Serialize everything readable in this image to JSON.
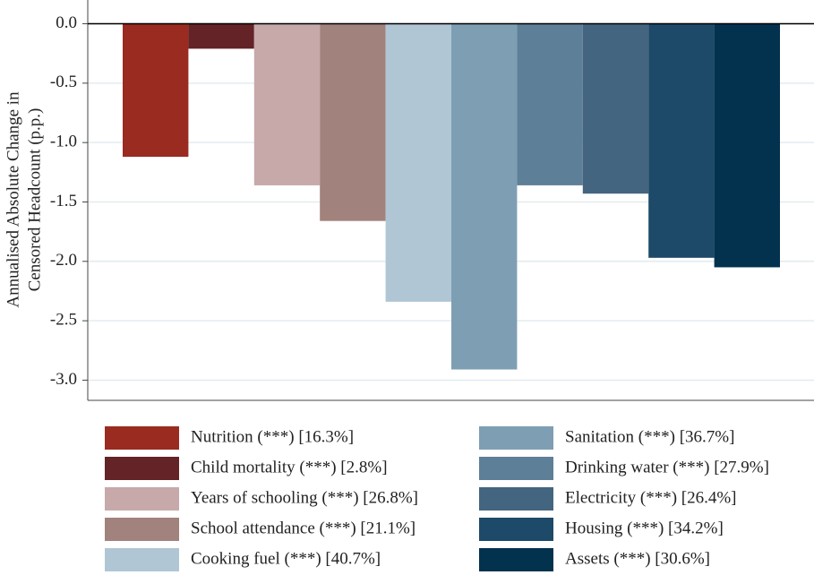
{
  "chart_data": {
    "type": "bar",
    "ylabel": [
      "Annualised Absolute Change in",
      "Censored Headcount (p.p.)"
    ],
    "ylim": [
      -3.17,
      0.2
    ],
    "yticks": [
      {
        "value": 0,
        "label": "0.0"
      },
      -0.5,
      {
        "value": -1,
        "label": "-1.0"
      },
      -1.5,
      {
        "value": -2,
        "label": "-2.0"
      },
      -2.5,
      {
        "value": -3,
        "label": "-3.0"
      }
    ],
    "grid": true,
    "series": [
      {
        "name": "Nutrition (***) [16.3%]",
        "color": "#9a2b21",
        "values": [
          -1.12
        ]
      },
      {
        "name": "Child mortality (***) [2.8%]",
        "color": "#632327",
        "values": [
          -0.21
        ]
      },
      {
        "name": "Years of schooling (***) [26.8%]",
        "color": "#c7a9aa",
        "values": [
          -1.36
        ]
      },
      {
        "name": "School attendance (***) [21.1%]",
        "color": "#a2827c",
        "values": [
          -1.66
        ]
      },
      {
        "name": "Cooking fuel (***) [40.7%]",
        "color": "#b0c6d5",
        "values": [
          -2.34
        ]
      },
      {
        "name": "Sanitation (***) [36.7%]",
        "color": "#7e9eb4",
        "values": [
          -2.91
        ]
      },
      {
        "name": "Drinking water (***) [27.9%]",
        "color": "#5e7f98",
        "values": [
          -1.36
        ]
      },
      {
        "name": "Electricity (***) [26.4%]",
        "color": "#44657f",
        "values": [
          -1.43
        ]
      },
      {
        "name": "Housing (***) [34.2%]",
        "color": "#1d4a68",
        "values": [
          -1.97
        ]
      },
      {
        "name": "Assets (***) [30.6%]",
        "color": "#03324f",
        "values": [
          -2.05
        ]
      }
    ]
  }
}
